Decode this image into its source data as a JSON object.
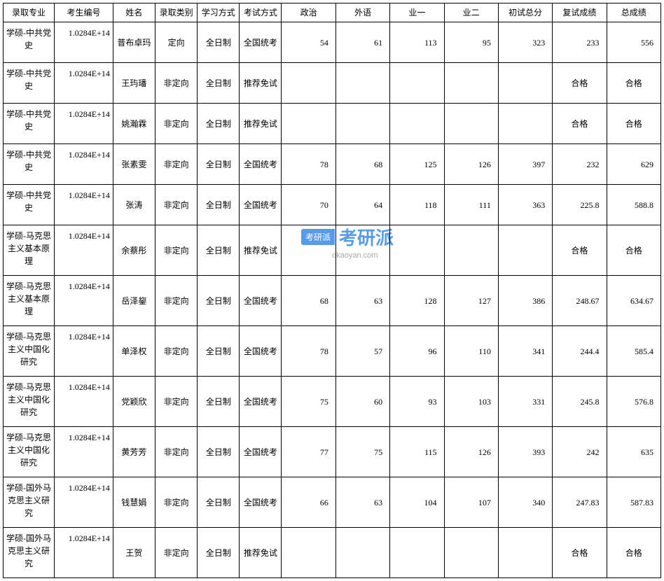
{
  "table": {
    "columns": [
      {
        "key": "major",
        "label": "录取专业",
        "class": "col-major"
      },
      {
        "key": "id",
        "label": "考生编号",
        "class": "col-id"
      },
      {
        "key": "name",
        "label": "姓名",
        "class": "col-name"
      },
      {
        "key": "type",
        "label": "录取类别",
        "class": "col-type"
      },
      {
        "key": "study",
        "label": "学习方式",
        "class": "col-study"
      },
      {
        "key": "exam",
        "label": "考试方式",
        "class": "col-exam"
      },
      {
        "key": "politics",
        "label": "政治",
        "class": "col-score",
        "numeric": true
      },
      {
        "key": "foreign",
        "label": "外语",
        "class": "col-score",
        "numeric": true
      },
      {
        "key": "sub1",
        "label": "业一",
        "class": "col-score",
        "numeric": true
      },
      {
        "key": "sub2",
        "label": "业二",
        "class": "col-score",
        "numeric": true
      },
      {
        "key": "initial",
        "label": "初试总分",
        "class": "col-score",
        "numeric": true
      },
      {
        "key": "retest",
        "label": "复试成绩",
        "class": "col-score",
        "numeric": true
      },
      {
        "key": "total",
        "label": "总成绩",
        "class": "col-score",
        "numeric": true
      }
    ],
    "rows": [
      {
        "major": "学硕-中共党史",
        "id": "1.0284E+14",
        "name": "普布卓玛",
        "type": "定向",
        "study": "全日制",
        "exam": "全国统考",
        "politics": "54",
        "foreign": "61",
        "sub1": "113",
        "sub2": "95",
        "initial": "323",
        "retest": "233",
        "total": "556",
        "rowClass": "multi-line"
      },
      {
        "major": "学硕-中共党史",
        "id": "1.0284E+14",
        "name": "王玙璠",
        "type": "非定向",
        "study": "全日制",
        "exam": "推荐免试",
        "politics": "",
        "foreign": "",
        "sub1": "",
        "sub2": "",
        "initial": "",
        "retest": "合格",
        "total": "合格",
        "rowClass": "multi-line"
      },
      {
        "major": "学硕-中共党史",
        "id": "1.0284E+14",
        "name": "姚瀚霖",
        "type": "非定向",
        "study": "全日制",
        "exam": "推荐免试",
        "politics": "",
        "foreign": "",
        "sub1": "",
        "sub2": "",
        "initial": "",
        "retest": "合格",
        "total": "合格",
        "rowClass": "multi-line"
      },
      {
        "major": "学硕-中共党史",
        "id": "1.0284E+14",
        "name": "张素雯",
        "type": "非定向",
        "study": "全日制",
        "exam": "全国统考",
        "politics": "78",
        "foreign": "68",
        "sub1": "125",
        "sub2": "126",
        "initial": "397",
        "retest": "232",
        "total": "629",
        "rowClass": "multi-line"
      },
      {
        "major": "学硕-中共党史",
        "id": "1.0284E+14",
        "name": "张涛",
        "type": "非定向",
        "study": "全日制",
        "exam": "全国统考",
        "politics": "70",
        "foreign": "64",
        "sub1": "118",
        "sub2": "111",
        "initial": "363",
        "retest": "225.8",
        "total": "588.8",
        "rowClass": "multi-line"
      },
      {
        "major": "学硕-马克思主义基本原理",
        "id": "1.0284E+14",
        "name": "余蔡彤",
        "type": "非定向",
        "study": "全日制",
        "exam": "推荐免试",
        "politics": "",
        "foreign": "",
        "sub1": "",
        "sub2": "",
        "initial": "",
        "retest": "合格",
        "total": "合格",
        "rowClass": "multi-line-tall"
      },
      {
        "major": "学硕-马克思主义基本原理",
        "id": "1.0284E+14",
        "name": "岳泽鋆",
        "type": "非定向",
        "study": "全日制",
        "exam": "全国统考",
        "politics": "68",
        "foreign": "63",
        "sub1": "128",
        "sub2": "127",
        "initial": "386",
        "retest": "248.67",
        "total": "634.67",
        "rowClass": "multi-line-tall"
      },
      {
        "major": "学硕-马克思主义中国化研究",
        "id": "1.0284E+14",
        "name": "单泽权",
        "type": "非定向",
        "study": "全日制",
        "exam": "全国统考",
        "politics": "78",
        "foreign": "57",
        "sub1": "96",
        "sub2": "110",
        "initial": "341",
        "retest": "244.4",
        "total": "585.4",
        "rowClass": "multi-line-tall"
      },
      {
        "major": "学硕-马克思主义中国化研究",
        "id": "1.0284E+14",
        "name": "党颖欣",
        "type": "非定向",
        "study": "全日制",
        "exam": "全国统考",
        "politics": "75",
        "foreign": "60",
        "sub1": "93",
        "sub2": "103",
        "initial": "331",
        "retest": "245.8",
        "total": "576.8",
        "rowClass": "multi-line-tall"
      },
      {
        "major": "学硕-马克思主义中国化研究",
        "id": "1.0284E+14",
        "name": "黄芳芳",
        "type": "非定向",
        "study": "全日制",
        "exam": "全国统考",
        "politics": "77",
        "foreign": "75",
        "sub1": "115",
        "sub2": "126",
        "initial": "393",
        "retest": "242",
        "total": "635",
        "rowClass": "multi-line-tall"
      },
      {
        "major": "学硕-国外马克思主义研究",
        "id": "1.0284E+14",
        "name": "钱慧娟",
        "type": "非定向",
        "study": "全日制",
        "exam": "全国统考",
        "politics": "66",
        "foreign": "63",
        "sub1": "104",
        "sub2": "107",
        "initial": "340",
        "retest": "247.83",
        "total": "587.83",
        "rowClass": "multi-line-tall"
      },
      {
        "major": "学硕-国外马克思主义研究",
        "id": "1.0284E+14",
        "name": "王贺",
        "type": "非定向",
        "study": "全日制",
        "exam": "推荐免试",
        "politics": "",
        "foreign": "",
        "sub1": "",
        "sub2": "",
        "initial": "",
        "retest": "合格",
        "total": "合格",
        "rowClass": "multi-line-tall"
      }
    ],
    "border_color": "#000000",
    "background_color": "#ffffff",
    "font_size": 12
  },
  "watermark": {
    "badge_text": "考研派",
    "main_text": "考研派",
    "url": "okaoyan.com",
    "badge_bg": "#3a8be8",
    "text_color": "#3a8be8",
    "url_color": "#9a9a9a"
  }
}
